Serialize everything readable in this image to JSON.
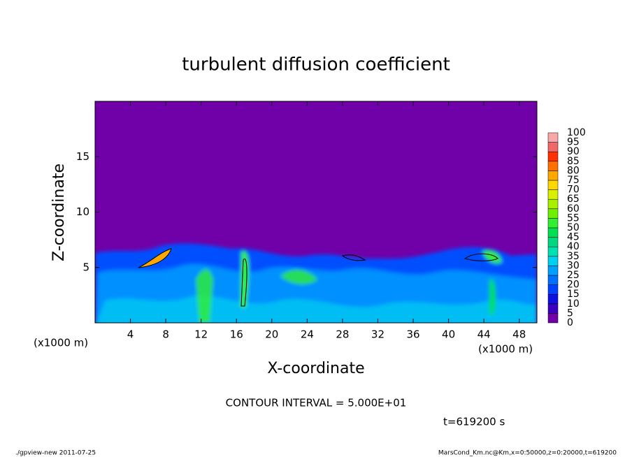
{
  "chart_data": {
    "type": "contour",
    "title": "turbulent diffusion coefficient",
    "xlabel": "X-coordinate",
    "ylabel": "Z-coordinate",
    "x_unit": "(x1000 m)",
    "xlim": [
      0,
      50
    ],
    "ylim": [
      0,
      20
    ],
    "xticks": [
      4,
      8,
      12,
      16,
      20,
      24,
      28,
      32,
      36,
      40,
      44,
      48
    ],
    "yticks": [
      5,
      10,
      15
    ],
    "colorbar": {
      "levels": [
        0,
        5,
        10,
        15,
        20,
        25,
        30,
        35,
        40,
        45,
        50,
        55,
        60,
        65,
        70,
        75,
        80,
        85,
        90,
        95,
        100
      ],
      "colors": [
        "#7000a8",
        "#3c00c0",
        "#1010e0",
        "#0040ff",
        "#0070ff",
        "#00a0ff",
        "#00d0f0",
        "#00e0b0",
        "#00d880",
        "#00e050",
        "#30f030",
        "#70f000",
        "#a8f000",
        "#d8f000",
        "#ffd800",
        "#ffa800",
        "#ff7000",
        "#ff3000",
        "#f06868",
        "#f8a8a8"
      ]
    },
    "contour_interval": "CONTOUR INTERVAL = 5.000E+01",
    "time": "t=619200 s",
    "footer_left": "./gpview-new  2011-07-25",
    "footer_right": "MarsCond_Km.nc@Km,x=0:50000,z=0:20000,t=619200"
  }
}
